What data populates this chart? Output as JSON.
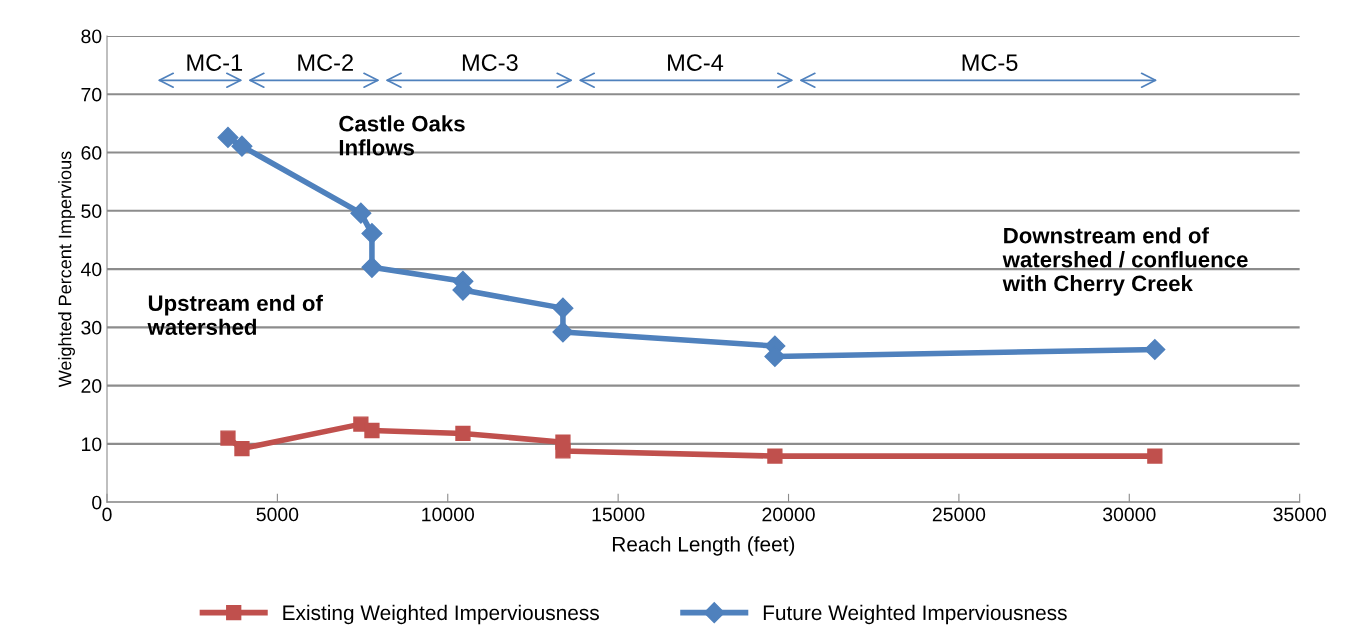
{
  "chart_data": {
    "type": "line",
    "xlabel": "Reach Length (feet)",
    "ylabel": "Weighted Percent Impervious",
    "x": [
      3550,
      3960,
      7450,
      7775,
      7775,
      10445,
      10445,
      13380,
      13380,
      19600,
      19600,
      30750
    ],
    "series": [
      {
        "name": "Existing Weighted Imperviousness",
        "color": "#c0504d",
        "marker": "square",
        "x": [
          3550,
          3960,
          7450,
          7775,
          10445,
          13380,
          13380,
          19600,
          30750
        ],
        "values": [
          11.0,
          9.2,
          13.4,
          12.3,
          11.8,
          10.3,
          8.8,
          7.9,
          7.9
        ]
      },
      {
        "name": "Future Weighted Imperviousness",
        "color": "#4f81bd",
        "marker": "diamond",
        "values": [
          62.6,
          61.1,
          49.6,
          46.1,
          40.3,
          37.9,
          36.4,
          33.3,
          29.2,
          26.8,
          25.0,
          26.2
        ]
      }
    ],
    "xlim": [
      0,
      35000
    ],
    "xticks": [
      0,
      5000,
      10000,
      15000,
      20000,
      25000,
      30000,
      35000
    ],
    "ylim": [
      0,
      80
    ],
    "yticks": [
      0,
      10,
      20,
      30,
      40,
      50,
      60,
      70,
      80
    ],
    "grid": "y",
    "legend": "bottom",
    "annotations": [
      "MC-1",
      "MC-2",
      "MC-3",
      "MC-4",
      "MC-5",
      "Castle Oaks\nInflows",
      "Upstream end of\nwatershed",
      "Downstream end of\nwatershed / confluence\nwith Cherry Creek"
    ]
  }
}
